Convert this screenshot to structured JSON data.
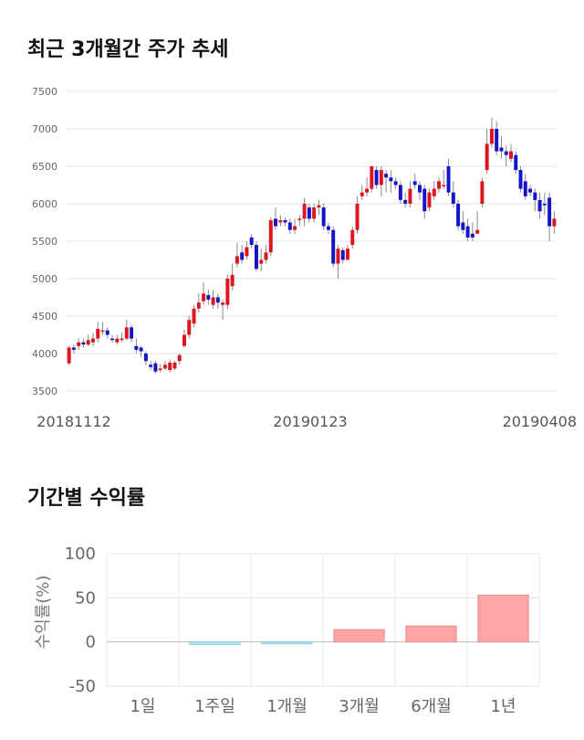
{
  "charts_titles": {
    "price": "최근 3개월간 주가 추세",
    "returns": "기간별 수익률"
  },
  "chart_data": [
    {
      "type": "candlestick",
      "ylim": [
        3500,
        7500
      ],
      "yticks": [
        3500,
        4000,
        4500,
        5000,
        5500,
        6000,
        6500,
        7000,
        7500
      ],
      "xticks": [
        "20181112",
        "20190123",
        "20190408"
      ],
      "grid": true,
      "up_color": "#e0141e",
      "down_color": "#1414c8",
      "candles": [
        [
          3870,
          4080,
          3850,
          4100
        ],
        [
          4080,
          4050,
          4000,
          4120
        ],
        [
          4100,
          4150,
          4050,
          4200
        ],
        [
          4150,
          4120,
          4080,
          4200
        ],
        [
          4120,
          4180,
          4100,
          4250
        ],
        [
          4150,
          4200,
          4100,
          4280
        ],
        [
          4200,
          4330,
          4150,
          4420
        ],
        [
          4300,
          4310,
          4250,
          4420
        ],
        [
          4310,
          4250,
          4200,
          4350
        ],
        [
          4200,
          4180,
          4150,
          4250
        ],
        [
          4150,
          4200,
          4120,
          4250
        ],
        [
          4200,
          4200,
          4150,
          4280
        ],
        [
          4200,
          4350,
          4180,
          4450
        ],
        [
          4350,
          4200,
          4150,
          4380
        ],
        [
          4100,
          4050,
          4000,
          4200
        ],
        [
          4080,
          4030,
          3950,
          4100
        ],
        [
          4000,
          3900,
          3850,
          4030
        ],
        [
          3850,
          3820,
          3780,
          3900
        ],
        [
          3870,
          3760,
          3730,
          3900
        ],
        [
          3780,
          3800,
          3750,
          3860
        ],
        [
          3800,
          3850,
          3780,
          3900
        ],
        [
          3780,
          3880,
          3750,
          3920
        ],
        [
          3800,
          3880,
          3780,
          3900
        ],
        [
          3900,
          3980,
          3850,
          4000
        ],
        [
          4100,
          4250,
          4080,
          4320
        ],
        [
          4250,
          4450,
          4200,
          4500
        ],
        [
          4400,
          4600,
          4350,
          4650
        ],
        [
          4600,
          4680,
          4550,
          4800
        ],
        [
          4700,
          4800,
          4650,
          4950
        ],
        [
          4780,
          4720,
          4650,
          4850
        ],
        [
          4650,
          4750,
          4600,
          4850
        ],
        [
          4750,
          4680,
          4600,
          4800
        ],
        [
          4650,
          4680,
          4450,
          4720
        ],
        [
          4650,
          5000,
          4600,
          5050
        ],
        [
          4900,
          5050,
          4850,
          5200
        ],
        [
          5200,
          5300,
          5150,
          5480
        ],
        [
          5350,
          5250,
          5200,
          5450
        ],
        [
          5300,
          5420,
          5250,
          5500
        ],
        [
          5550,
          5450,
          5400,
          5600
        ],
        [
          5450,
          5130,
          5100,
          5500
        ],
        [
          5200,
          5250,
          5100,
          5400
        ],
        [
          5250,
          5350,
          5200,
          5450
        ],
        [
          5350,
          5780,
          5300,
          5820
        ],
        [
          5800,
          5700,
          5650,
          5950
        ],
        [
          5750,
          5780,
          5700,
          5850
        ],
        [
          5780,
          5750,
          5700,
          5820
        ],
        [
          5750,
          5650,
          5600,
          5800
        ],
        [
          5650,
          5700,
          5600,
          5800
        ],
        [
          5800,
          5800,
          5700,
          5850
        ],
        [
          5800,
          6000,
          5700,
          6080
        ],
        [
          5950,
          5800,
          5750,
          6000
        ],
        [
          5800,
          5950,
          5750,
          6000
        ],
        [
          5950,
          5980,
          5850,
          6050
        ],
        [
          5950,
          5700,
          5650,
          6000
        ],
        [
          5700,
          5650,
          5600,
          5750
        ],
        [
          5650,
          5200,
          5150,
          5700
        ],
        [
          5200,
          5400,
          5000,
          5450
        ],
        [
          5380,
          5250,
          5200,
          5420
        ],
        [
          5250,
          5400,
          5250,
          5450
        ],
        [
          5450,
          5650,
          5400,
          5700
        ],
        [
          5650,
          6000,
          5600,
          6100
        ],
        [
          6100,
          6150,
          6050,
          6250
        ],
        [
          6150,
          6200,
          6100,
          6350
        ],
        [
          6200,
          6500,
          6150,
          6500
        ],
        [
          6450,
          6250,
          6200,
          6500
        ],
        [
          6250,
          6450,
          6100,
          6500
        ],
        [
          6400,
          6350,
          6150,
          6450
        ],
        [
          6350,
          6300,
          6150,
          6450
        ],
        [
          6300,
          6250,
          6200,
          6350
        ],
        [
          6250,
          6050,
          6000,
          6300
        ],
        [
          6050,
          6000,
          5950,
          6150
        ],
        [
          6000,
          6200,
          5950,
          6300
        ],
        [
          6300,
          6250,
          6200,
          6400
        ],
        [
          6250,
          6150,
          6050,
          6300
        ],
        [
          6200,
          5900,
          5800,
          6250
        ],
        [
          5950,
          6150,
          5900,
          6200
        ],
        [
          6100,
          6200,
          6050,
          6300
        ],
        [
          6200,
          6300,
          6150,
          6350
        ],
        [
          6250,
          6250,
          6200,
          6450
        ],
        [
          6500,
          6150,
          6100,
          6600
        ],
        [
          6150,
          6000,
          5950,
          6300
        ],
        [
          6000,
          5700,
          5650,
          6050
        ],
        [
          5750,
          5650,
          5600,
          5900
        ],
        [
          5700,
          5550,
          5500,
          5800
        ],
        [
          5600,
          5550,
          5500,
          5750
        ],
        [
          5600,
          5650,
          5600,
          5900
        ],
        [
          6000,
          6300,
          5950,
          6350
        ],
        [
          6450,
          6800,
          6400,
          7000
        ],
        [
          6800,
          7000,
          6750,
          7150
        ],
        [
          7000,
          6700,
          6650,
          7100
        ],
        [
          6750,
          6700,
          6600,
          6900
        ],
        [
          6700,
          6650,
          6500,
          6780
        ],
        [
          6600,
          6700,
          6550,
          6800
        ],
        [
          6650,
          6450,
          6400,
          6700
        ],
        [
          6450,
          6200,
          6150,
          6500
        ],
        [
          6300,
          6100,
          6050,
          6400
        ],
        [
          6200,
          6150,
          6100,
          6250
        ],
        [
          6150,
          6050,
          5900,
          6200
        ],
        [
          6050,
          5900,
          5800,
          6150
        ],
        [
          6000,
          5980,
          5850,
          6150
        ],
        [
          6080,
          5700,
          5500,
          6150
        ],
        [
          5700,
          5800,
          5600,
          5900
        ]
      ]
    },
    {
      "type": "bar",
      "categories": [
        "1일",
        "1주일",
        "1개월",
        "3개월",
        "6개월",
        "1년"
      ],
      "values": [
        0,
        -3,
        -2,
        14,
        18,
        53
      ],
      "ylim": [
        -50,
        100
      ],
      "yticks": [
        -50,
        0,
        50,
        100
      ],
      "ylabel": "수익률(%)",
      "grid": true,
      "positive_color": "#ffa5a5",
      "positive_stroke": "#e58f8f",
      "negative_color": "#aee6f5",
      "negative_stroke": "#8ccfe3"
    }
  ]
}
